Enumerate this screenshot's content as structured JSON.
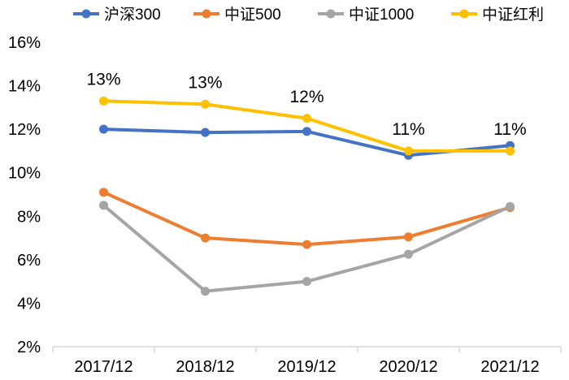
{
  "chart_data": {
    "type": "line",
    "title": "",
    "xlabel": "",
    "ylabel": "",
    "categories": [
      "2017/12",
      "2018/12",
      "2019/12",
      "2020/12",
      "2021/12"
    ],
    "ylim": [
      2,
      16
    ],
    "yticks": [
      2,
      4,
      6,
      8,
      10,
      12,
      14,
      16
    ],
    "ytick_labels": [
      "2%",
      "4%",
      "6%",
      "8%",
      "10%",
      "12%",
      "14%",
      "16%"
    ],
    "legend_position": "top",
    "grid": false,
    "series": [
      {
        "name": "沪深300",
        "color": "#4472C4",
        "values": [
          12.0,
          11.85,
          11.9,
          10.8,
          11.25
        ]
      },
      {
        "name": "中证500",
        "color": "#ED7D31",
        "values": [
          9.1,
          7.0,
          6.7,
          7.05,
          8.4
        ]
      },
      {
        "name": "中证1000",
        "color": "#A5A5A5",
        "values": [
          8.5,
          4.55,
          5.0,
          6.25,
          8.45
        ]
      },
      {
        "name": "中证红利",
        "color": "#FFC000",
        "values": [
          13.3,
          13.15,
          12.5,
          11.0,
          11.0
        ]
      }
    ],
    "data_labels": {
      "series": "中证红利",
      "labels": [
        "13%",
        "13%",
        "12%",
        "11%",
        "11%"
      ]
    }
  }
}
